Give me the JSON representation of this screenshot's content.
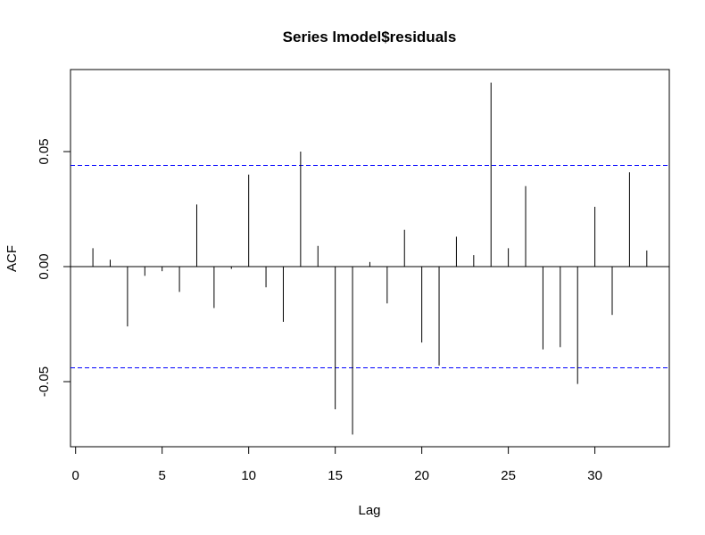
{
  "chart_data": {
    "type": "bar",
    "title": "Series lmodel$residuals",
    "xlabel": "Lag",
    "ylabel": "ACF",
    "xlim": [
      0,
      33
    ],
    "ylim": [
      -0.077,
      0.085
    ],
    "x_ticks": [
      0,
      5,
      10,
      15,
      20,
      25,
      30
    ],
    "y_ticks": [
      -0.05,
      0.0,
      0.05
    ],
    "y_tick_labels": [
      "-0.05",
      "0.00",
      "0.05"
    ],
    "lags": [
      1,
      2,
      3,
      4,
      5,
      6,
      7,
      8,
      9,
      10,
      11,
      12,
      13,
      14,
      15,
      16,
      17,
      18,
      19,
      20,
      21,
      22,
      23,
      24,
      25,
      26,
      27,
      28,
      29,
      30,
      31,
      32,
      33
    ],
    "values": [
      0.008,
      0.003,
      -0.026,
      -0.004,
      -0.002,
      -0.011,
      0.027,
      -0.018,
      -0.001,
      0.04,
      -0.009,
      -0.024,
      0.05,
      0.009,
      -0.062,
      -0.073,
      0.002,
      -0.016,
      0.016,
      -0.033,
      -0.043,
      0.013,
      0.005,
      0.08,
      0.008,
      0.035,
      -0.036,
      -0.035,
      -0.051,
      0.026,
      -0.021,
      0.041,
      0.007
    ],
    "confidence_bounds": [
      0.044,
      -0.044
    ],
    "confidence_color": "#0000ff",
    "zero_line": 0.0,
    "grid": false
  }
}
